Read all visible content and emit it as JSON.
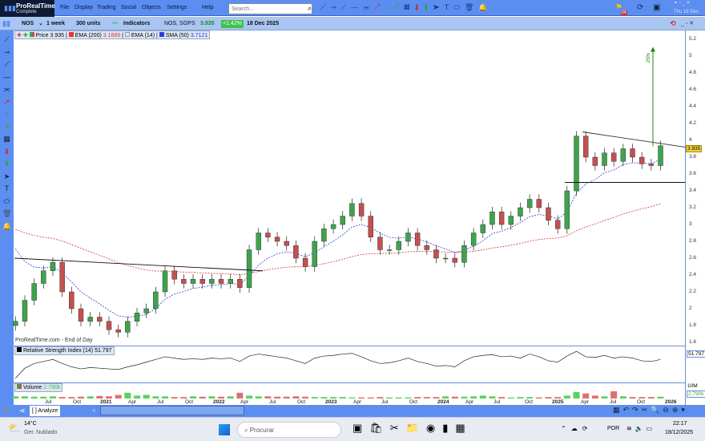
{
  "app": {
    "title": "ProRealTime",
    "subtitle": "Complete"
  },
  "menu": [
    "File",
    "Display",
    "Trading",
    "Social",
    "Objects",
    "Settings",
    "Help"
  ],
  "search": {
    "placeholder": "Search..."
  },
  "notif_badge": "64",
  "clock_top": "Thu 18 Dec",
  "toolbar": {
    "symbol": "NOS",
    "timeframe": "1 week",
    "units": "300 units",
    "indicators": "Indicators",
    "instrument": "NOS, SGPS",
    "price": "3.935",
    "change": "+1.42%",
    "date": "18 Dec 2025"
  },
  "legend": {
    "price_label": "Price",
    "price": "3.935",
    "ema200_label": "EMA (200)",
    "ema200": "3.1689",
    "ema14_label": "EMA (14)",
    "sma50_label": "SMA (50)",
    "sma50": "3.7121"
  },
  "colors": {
    "up": "#3fa34d",
    "down": "#c4504f",
    "ema200": "#d33",
    "sma50": "#2a3fd6",
    "accent": "#5b8ef0",
    "price_tag": "#f2d33a"
  },
  "source_note": "ProRealTime.com - End of Day",
  "rsi": {
    "label": "Relative Strength Index (14)",
    "value": "51.797"
  },
  "volume": {
    "label": "Volume",
    "value": "2.790k",
    "axis": "10M"
  },
  "annotations": {
    "target_pct": "25%"
  },
  "bottom": {
    "analyze": "Analyze"
  },
  "taskbar": {
    "temp": "14°C",
    "weather": "Ger. Nublado",
    "search": "Procurar",
    "lang": "POR",
    "time": "22:17",
    "date": "18/12/2025"
  },
  "chart_data": {
    "type": "candlestick",
    "interval_shown": "monthly approximation of weekly chart",
    "start_month": "2020-03",
    "ylim": [
      1.6,
      5.2
    ],
    "yticks": [
      "5.2",
      "5",
      "4.8",
      "4.6",
      "4.4",
      "4.2",
      "4",
      "3.8",
      "3.6",
      "3.4",
      "3.2",
      "3",
      "2.8",
      "2.6",
      "2.4",
      "2.2",
      "2",
      "1.8",
      "1.6"
    ],
    "xticks": [
      "Jul",
      "Oct",
      "2021",
      "Apr",
      "Jul",
      "Oct",
      "2022",
      "Apr",
      "Jul",
      "Oct",
      "2023",
      "Apr",
      "Jul",
      "Oct",
      "2024",
      "Apr",
      "Jul",
      "Oct",
      "2025",
      "Apr",
      "Jul",
      "Oct",
      "2026"
    ],
    "close": [
      1.85,
      2.1,
      2.3,
      2.45,
      2.55,
      2.2,
      2.0,
      1.85,
      1.9,
      1.85,
      1.75,
      1.72,
      1.85,
      1.95,
      2.0,
      2.2,
      2.45,
      2.35,
      2.3,
      2.35,
      2.3,
      2.35,
      2.3,
      2.35,
      2.25,
      2.7,
      2.9,
      2.85,
      2.8,
      2.75,
      2.6,
      2.5,
      2.8,
      2.95,
      3.0,
      3.1,
      3.25,
      3.1,
      2.85,
      2.7,
      2.7,
      2.8,
      2.9,
      2.75,
      2.7,
      2.6,
      2.6,
      2.55,
      2.75,
      2.9,
      3.0,
      3.15,
      3.0,
      3.1,
      3.2,
      3.3,
      3.2,
      3.05,
      2.95,
      3.4,
      4.05,
      3.8,
      3.7,
      3.85,
      3.75,
      3.9,
      3.8,
      3.72,
      3.7,
      3.935
    ],
    "volume_m": [
      3,
      3,
      2.5,
      2.5,
      3,
      2,
      2,
      2.5,
      3,
      3.5,
      3,
      5,
      8,
      4,
      5,
      3,
      3,
      2,
      2,
      3,
      2.5,
      3,
      2.5,
      3,
      8,
      4,
      3,
      3,
      2.5,
      2.5,
      3,
      2.5,
      2,
      2,
      2,
      2,
      1.5,
      1.5,
      1.5,
      2,
      1.5,
      1.5,
      1.5,
      2,
      2,
      2,
      3,
      2.5,
      2.5,
      3,
      4,
      3,
      2,
      1.5,
      2,
      2,
      1.5,
      2,
      2,
      4,
      9,
      7,
      4,
      3,
      10,
      3,
      2,
      2,
      2,
      2.5
    ],
    "rsi_values": [
      30,
      45,
      52,
      55,
      58,
      52,
      47,
      44,
      46,
      45,
      44,
      43,
      47,
      50,
      54,
      58,
      62,
      60,
      58,
      59,
      58,
      60,
      59,
      60,
      55,
      63,
      66,
      64,
      62,
      60,
      56,
      52,
      60,
      63,
      64,
      66,
      67,
      62,
      56,
      52,
      53,
      56,
      60,
      55,
      52,
      48,
      49,
      47,
      56,
      62,
      64,
      65,
      62,
      63,
      60,
      66,
      62,
      56,
      54,
      63,
      70,
      62,
      61,
      64,
      60,
      62,
      60,
      56,
      55,
      58
    ],
    "trendlines": [
      {
        "from": [
          "2020-03",
          2.6
        ],
        "to": [
          "2022-04",
          2.45
        ]
      },
      {
        "from": [
          "2025-03",
          4.1
        ],
        "to": [
          "2026-01",
          3.92
        ]
      },
      {
        "level": 3.5,
        "from": "2025-02"
      }
    ],
    "projection": {
      "from": 3.93,
      "to": 5.1
    }
  }
}
